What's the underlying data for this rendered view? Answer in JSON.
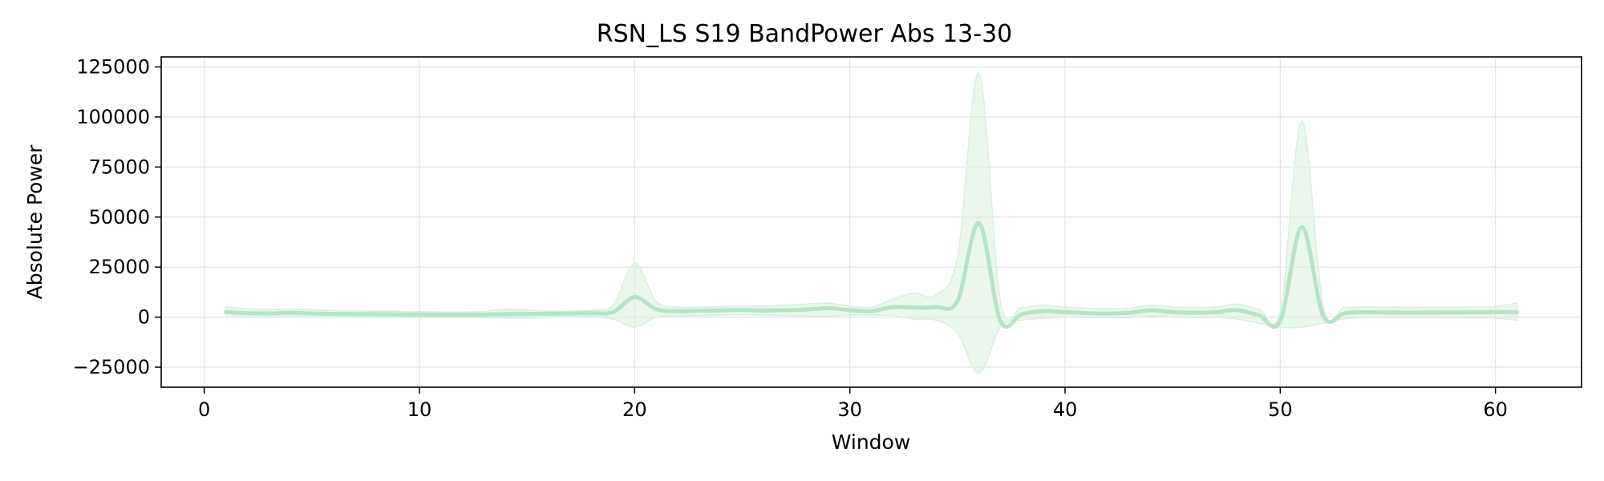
{
  "chart_data": {
    "type": "line",
    "title": "RSN_LS S19 BandPower Abs 13-30",
    "xlabel": "Window",
    "ylabel": "Absolute Power",
    "xlim": [
      -2,
      64
    ],
    "ylim": [
      -35000,
      130000
    ],
    "xticks": [
      0,
      10,
      20,
      30,
      40,
      50,
      60
    ],
    "yticks": [
      -25000,
      0,
      25000,
      50000,
      75000,
      100000,
      125000
    ],
    "xtick_labels": [
      "0",
      "10",
      "20",
      "30",
      "40",
      "50",
      "60"
    ],
    "ytick_labels": [
      "−25000",
      "0",
      "25000",
      "50000",
      "75000",
      "100000",
      "125000"
    ],
    "grid": true,
    "colors": {
      "line": "#b5e3c6",
      "band": "#d8f0df",
      "grid": "#e3e3e3",
      "axis": "#000000"
    },
    "series": [
      {
        "x": [
          1,
          2,
          3,
          4,
          5,
          6,
          7,
          8,
          9,
          10,
          11,
          12,
          13,
          14,
          15,
          16,
          17,
          18,
          19,
          20,
          21,
          22,
          23,
          24,
          25,
          26,
          27,
          28,
          29,
          30,
          31,
          32,
          33,
          34,
          35,
          36,
          37,
          38,
          39,
          40,
          41,
          42,
          43,
          44,
          45,
          46,
          47,
          48,
          49,
          50,
          51,
          52,
          53,
          54,
          55,
          56,
          57,
          58,
          59,
          60,
          61
        ],
        "mean": [
          2500,
          2000,
          1800,
          2200,
          1800,
          1600,
          1500,
          1500,
          1400,
          1300,
          1200,
          1200,
          1300,
          1500,
          1600,
          1700,
          1800,
          2000,
          2500,
          10000,
          4000,
          3000,
          3200,
          3400,
          3600,
          3300,
          3500,
          3800,
          4500,
          3500,
          3000,
          5000,
          4800,
          5000,
          8000,
          47000,
          -2000,
          1500,
          3000,
          2500,
          2000,
          1800,
          2200,
          3500,
          2500,
          2200,
          2500,
          3500,
          1000,
          -2000,
          45000,
          500,
          2000,
          2500,
          2300,
          2200,
          2300,
          2400,
          2400,
          2500,
          2500
        ],
        "upper": [
          5000,
          4200,
          3800,
          4200,
          3600,
          3300,
          3100,
          3000,
          2900,
          2800,
          2600,
          2600,
          2800,
          4000,
          3500,
          3000,
          3000,
          3500,
          6000,
          27000,
          8000,
          5000,
          5000,
          5200,
          5500,
          5500,
          6000,
          6500,
          7000,
          5500,
          5000,
          9000,
          12000,
          11000,
          30000,
          122000,
          8000,
          5000,
          6000,
          5000,
          4500,
          4200,
          4500,
          6000,
          5000,
          4800,
          5000,
          6500,
          4000,
          3000,
          98000,
          5000,
          5000,
          5000,
          5000,
          5000,
          5000,
          5000,
          5200,
          5400,
          7000
        ],
        "lower": [
          200,
          100,
          -100,
          200,
          0,
          0,
          -100,
          -100,
          -100,
          -200,
          -200,
          -200,
          -200,
          -500,
          -300,
          0,
          200,
          300,
          -1000,
          -5000,
          0,
          500,
          800,
          1000,
          1200,
          1000,
          800,
          600,
          500,
          1000,
          1000,
          800,
          -1000,
          -1500,
          -8000,
          -28000,
          -5000,
          -1500,
          -500,
          0,
          -200,
          -300,
          -200,
          500,
          0,
          -300,
          0,
          -1000,
          -3000,
          -5000,
          -5000,
          -3000,
          -800,
          -300,
          -200,
          -300,
          -200,
          -300,
          -400,
          -500,
          -1500
        ]
      }
    ]
  }
}
